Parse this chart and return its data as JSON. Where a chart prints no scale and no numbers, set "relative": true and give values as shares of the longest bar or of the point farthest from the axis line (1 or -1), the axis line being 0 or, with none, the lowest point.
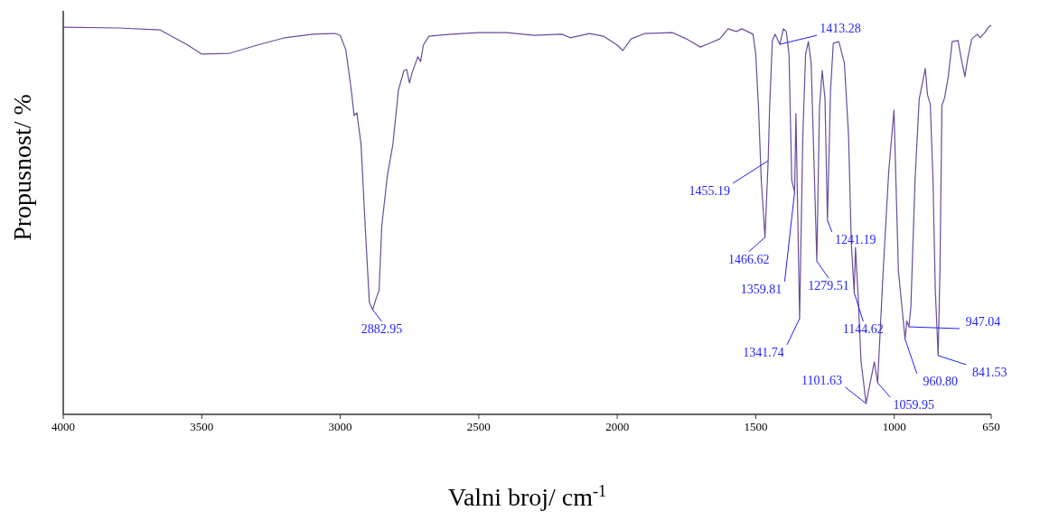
{
  "chart_data": {
    "type": "line",
    "relative": true,
    "xlabel": "Valni broj/ cm$^{-1}$",
    "ylabel": "Propusnost/ %",
    "xlim": [
      4000,
      650
    ],
    "xticks": [
      4000,
      3500,
      3000,
      2500,
      2000,
      1500,
      1000,
      650
    ],
    "grid": false,
    "marker": "none",
    "line_style": "solid",
    "series": [
      {
        "color": "#6a4c9c",
        "x": [
          4000,
          3800,
          3650,
          3550,
          3500,
          3400,
          3300,
          3200,
          3100,
          3020,
          3000,
          2980,
          2960,
          2950,
          2940,
          2925,
          2910,
          2895,
          2882.95,
          2870,
          2860,
          2850,
          2830,
          2810,
          2790,
          2770,
          2760,
          2750,
          2740,
          2720,
          2710,
          2700,
          2680,
          2600,
          2500,
          2400,
          2300,
          2200,
          2170,
          2100,
          2050,
          2000,
          1980,
          1950,
          1900,
          1800,
          1750,
          1700,
          1660,
          1630,
          1600,
          1570,
          1550,
          1510,
          1500,
          1490,
          1480,
          1466.62,
          1455.19,
          1450,
          1440,
          1430,
          1413.28,
          1400,
          1390,
          1380,
          1370,
          1359.81,
          1355,
          1341.74,
          1330,
          1320,
          1310,
          1300,
          1279.51,
          1270,
          1260,
          1250,
          1241.19,
          1230,
          1220,
          1200,
          1180,
          1165,
          1155,
          1144.62,
          1140,
          1130,
          1120,
          1101.63,
          1072,
          1059.95,
          1040,
          1020,
          1001,
          985,
          960.8,
          955,
          947.04,
          940,
          925,
          910,
          888,
          880,
          870,
          860,
          852,
          841.53,
          835,
          828,
          818,
          805,
          791,
          770,
          758,
          745,
          735,
          720,
          700,
          690,
          670,
          660,
          650
        ],
        "values": [
          0.995,
          0.993,
          0.988,
          0.949,
          0.926,
          0.928,
          0.949,
          0.968,
          0.977,
          0.979,
          0.974,
          0.937,
          0.833,
          0.768,
          0.775,
          0.694,
          0.485,
          0.288,
          0.269,
          0.299,
          0.318,
          0.485,
          0.613,
          0.694,
          0.833,
          0.884,
          0.886,
          0.852,
          0.879,
          0.919,
          0.907,
          0.949,
          0.972,
          0.977,
          0.981,
          0.981,
          0.974,
          0.977,
          0.968,
          0.979,
          0.972,
          0.949,
          0.935,
          0.965,
          0.979,
          0.981,
          0.965,
          0.944,
          0.956,
          0.965,
          0.991,
          0.984,
          0.991,
          0.977,
          0.926,
          0.787,
          0.601,
          0.455,
          0.652,
          0.787,
          0.961,
          0.977,
          0.951,
          0.991,
          0.984,
          0.926,
          0.601,
          0.571,
          0.773,
          0.246,
          0.717,
          0.926,
          0.958,
          0.903,
          0.394,
          0.787,
          0.884,
          0.81,
          0.499,
          0.833,
          0.954,
          0.958,
          0.903,
          0.717,
          0.439,
          0.313,
          0.429,
          0.299,
          0.137,
          0.028,
          0.135,
          0.081,
          0.369,
          0.624,
          0.782,
          0.369,
          0.193,
          0.24,
          0.225,
          0.276,
          0.601,
          0.81,
          0.889,
          0.821,
          0.798,
          0.601,
          0.323,
          0.151,
          0.369,
          0.794,
          0.814,
          0.868,
          0.958,
          0.961,
          0.914,
          0.868,
          0.914,
          0.965,
          0.977,
          0.968,
          0.984,
          0.995,
          1.0
        ]
      }
    ],
    "annotations": [
      {
        "text": "2882.95",
        "x": 2882.95,
        "y": 0.269
      },
      {
        "text": "1455.19",
        "x": 1455.19,
        "y": 0.652
      },
      {
        "text": "1413.28",
        "x": 1413.28,
        "y": 0.951
      },
      {
        "text": "1466.62",
        "x": 1466.62,
        "y": 0.455
      },
      {
        "text": "1359.81",
        "x": 1359.81,
        "y": 0.571
      },
      {
        "text": "1341.74",
        "x": 1341.74,
        "y": 0.246
      },
      {
        "text": "1279.51",
        "x": 1279.51,
        "y": 0.394
      },
      {
        "text": "1241.19",
        "x": 1241.19,
        "y": 0.499
      },
      {
        "text": "1144.62",
        "x": 1144.62,
        "y": 0.313
      },
      {
        "text": "1101.63",
        "x": 1101.63,
        "y": 0.028
      },
      {
        "text": "1059.95",
        "x": 1059.95,
        "y": 0.081
      },
      {
        "text": "960.80",
        "x": 960.8,
        "y": 0.193
      },
      {
        "text": "947.04",
        "x": 947.04,
        "y": 0.225
      },
      {
        "text": "841.53",
        "x": 841.53,
        "y": 0.151
      }
    ]
  }
}
